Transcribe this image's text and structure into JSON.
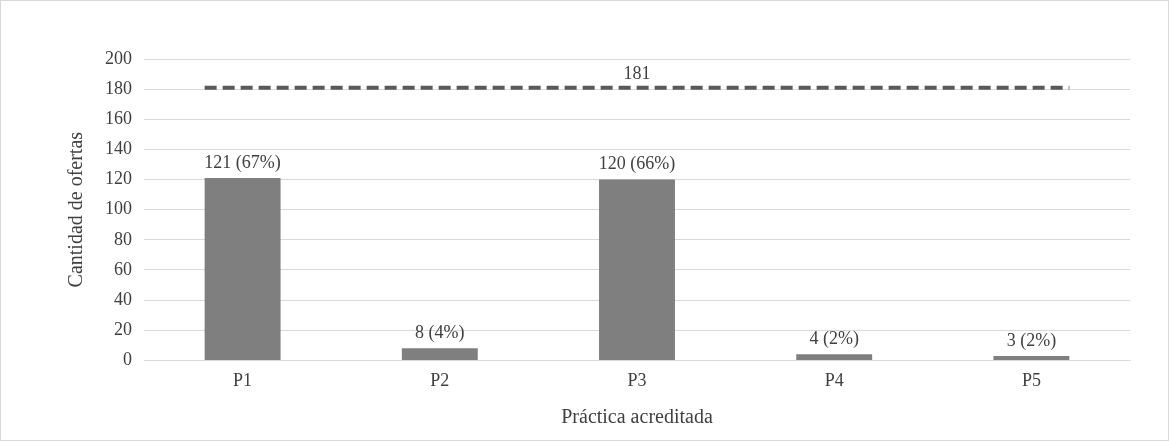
{
  "chart_data": {
    "type": "bar",
    "xlabel": "Práctica acreditada",
    "ylabel": "Cantidad de ofertas",
    "categories": [
      "P1",
      "P2",
      "P3",
      "P4",
      "P5"
    ],
    "values": [
      121,
      8,
      120,
      4,
      3
    ],
    "value_labels": [
      "121 (67%)",
      "8 (4%)",
      "120 (66%)",
      "4 (2%)",
      "3 (2%)"
    ],
    "color": "#7f7f7f",
    "ylim": [
      0,
      200
    ],
    "yticks": [
      0,
      20,
      40,
      60,
      80,
      100,
      120,
      140,
      160,
      180,
      200
    ],
    "grid": "y",
    "ref_lines": [
      {
        "axis": "y",
        "value": 181,
        "label": "181",
        "color": "#595959",
        "line_style": "dashed"
      }
    ]
  }
}
